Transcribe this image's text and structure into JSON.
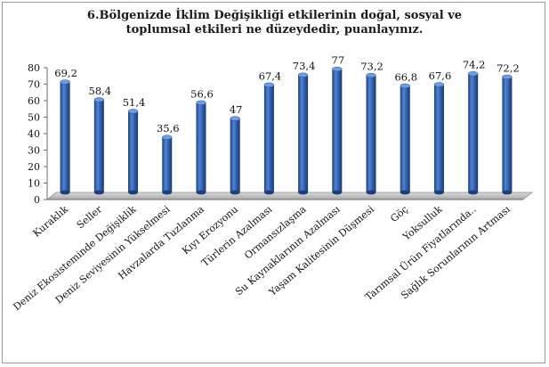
{
  "chart_data": {
    "type": "bar",
    "title": [
      "6.Bölgenizde İklim Değişikliği etkilerinin doğal, sosyal ve",
      "toplumsal etkileri ne düzeydedir, puanlayınız."
    ],
    "categories": [
      "Kuraklık",
      "Seller",
      "Deniz Ekosisteminde Değişiklik",
      "Deniz Seviyesinin Yükselmesi",
      "Havzalarda Tuzlanma",
      "Kıyı Erozyonu",
      "Türlerin Azalması",
      "Ormansızlaşma",
      "Su Kaynaklarının Azalması",
      "Yaşam Kalitesinin Düşmesi",
      "Göç",
      "Yoksulluk",
      "Tarımsal Ürün Fiyatlarında..",
      "Sağlık Sorunlarının Artması"
    ],
    "values": [
      69.2,
      58.4,
      51.4,
      35.6,
      56.6,
      47,
      67.4,
      73.4,
      77,
      73.2,
      66.8,
      67.6,
      74.2,
      72.2
    ],
    "value_labels": [
      "69,2",
      "58,4",
      "51,4",
      "35,6",
      "56,6",
      "47",
      "67,4",
      "73,4",
      "77",
      "73,2",
      "66,8",
      "67,6",
      "74,2",
      "72,2"
    ],
    "yticks": [
      "0",
      "10",
      "20",
      "30",
      "40",
      "50",
      "60",
      "70",
      "80"
    ],
    "ylim": [
      0,
      80
    ],
    "grid": false,
    "legend": "none",
    "bar_color": "#2e5fae",
    "floor_color": "#c8c8c8"
  }
}
